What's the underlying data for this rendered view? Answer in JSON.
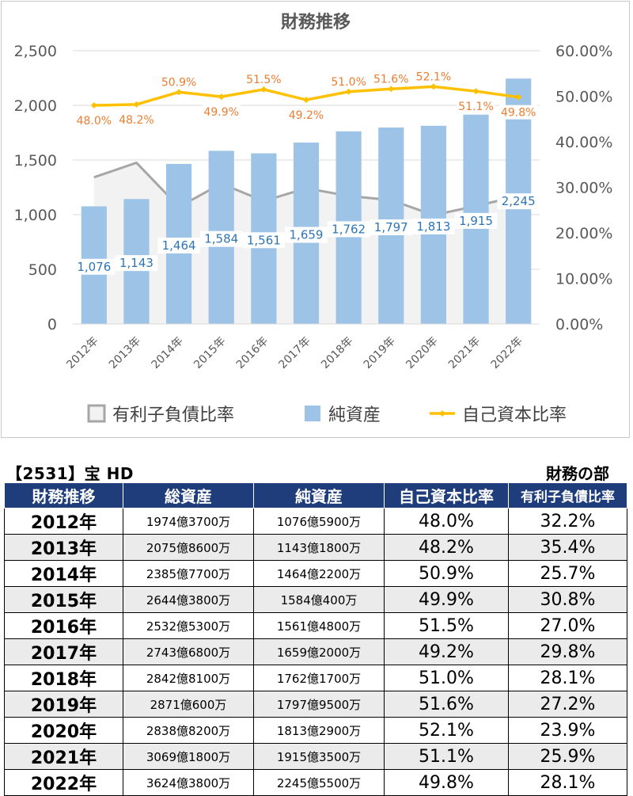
{
  "chart_data": {
    "type": "bar",
    "title": "財務推移",
    "categories": [
      "2012年",
      "2013年",
      "2014年",
      "2015年",
      "2016年",
      "2017年",
      "2018年",
      "2019年",
      "2020年",
      "2021年",
      "2022年"
    ],
    "series": [
      {
        "name": "有利子負債比率",
        "type": "area",
        "axis": "right",
        "color": "#a6a6a6",
        "values": [
          32.2,
          35.4,
          25.7,
          30.8,
          27.0,
          29.8,
          28.1,
          27.2,
          23.9,
          25.9,
          28.1
        ]
      },
      {
        "name": "純資産",
        "type": "bar",
        "axis": "left",
        "color": "#9dc3e6",
        "values": [
          1076,
          1143,
          1464,
          1584,
          1561,
          1659,
          1762,
          1797,
          1813,
          1915,
          2245
        ],
        "labels": [
          "1,076",
          "1,143",
          "1,464",
          "1,584",
          "1,561",
          "1,659",
          "1,762",
          "1,797",
          "1,813",
          "1,915",
          "2,245"
        ]
      },
      {
        "name": "自己資本比率",
        "type": "line",
        "axis": "right",
        "color": "#ffc000",
        "label_color": "#ed7d31",
        "values": [
          48.0,
          48.2,
          50.9,
          49.9,
          51.5,
          49.2,
          51.0,
          51.6,
          52.1,
          51.1,
          49.8
        ],
        "labels": [
          "48.0%",
          "48.2%",
          "50.9%",
          "49.9%",
          "51.5%",
          "49.2%",
          "51.0%",
          "51.6%",
          "52.1%",
          "51.1%",
          "49.8%"
        ]
      }
    ],
    "y_left": {
      "ylim": [
        0,
        2500
      ],
      "ticks": [
        "0",
        "500",
        "1,000",
        "1,500",
        "2,000",
        "2,500"
      ]
    },
    "y_right": {
      "ylim": [
        0,
        60
      ],
      "ticks": [
        "0.00%",
        "10.00%",
        "20.00%",
        "30.00%",
        "40.00%",
        "50.00%",
        "60.00%"
      ]
    },
    "legend_position": "bottom",
    "grid": true
  },
  "section": {
    "title": "【2531】宝 HD",
    "subtitle": "財務の部"
  },
  "table": {
    "headers": [
      "財務推移",
      "総資産",
      "純資産",
      "自己資本比率",
      "有利子負債比率"
    ],
    "rows": [
      [
        "2012年",
        "1974億3700万",
        "1076億5900万",
        "48.0%",
        "32.2%"
      ],
      [
        "2013年",
        "2075億8600万",
        "1143億1800万",
        "48.2%",
        "35.4%"
      ],
      [
        "2014年",
        "2385億7700万",
        "1464億2200万",
        "50.9%",
        "25.7%"
      ],
      [
        "2015年",
        "2644億3800万",
        "1584億400万",
        "49.9%",
        "30.8%"
      ],
      [
        "2016年",
        "2532億5300万",
        "1561億4800万",
        "51.5%",
        "27.0%"
      ],
      [
        "2017年",
        "2743億6800万",
        "1659億2000万",
        "49.2%",
        "29.8%"
      ],
      [
        "2018年",
        "2842億8100万",
        "1762億1700万",
        "51.0%",
        "28.1%"
      ],
      [
        "2019年",
        "2871億600万",
        "1797億9500万",
        "51.6%",
        "27.2%"
      ],
      [
        "2020年",
        "2838億8200万",
        "1813億2900万",
        "52.1%",
        "23.9%"
      ],
      [
        "2021年",
        "3069億1800万",
        "1915億3500万",
        "51.1%",
        "25.9%"
      ],
      [
        "2022年",
        "3624億3800万",
        "2245億5500万",
        "49.8%",
        "28.1%"
      ]
    ]
  }
}
